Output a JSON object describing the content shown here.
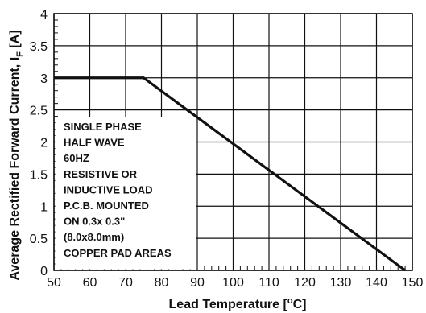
{
  "chart_data": {
    "type": "line",
    "xlabel": "Lead Temperature [",
    "xlabel_unit": "o",
    "xlabel_suffix": "C]",
    "ylabel": "Average Rectified Forward Current, I",
    "ylabel_sub": "F",
    "ylabel_suffix": " [A]",
    "xlim": [
      50,
      150
    ],
    "ylim": [
      0,
      4
    ],
    "x_ticks": [
      "50",
      "60",
      "70",
      "80",
      "90",
      "100",
      "110",
      "120",
      "130",
      "140",
      "150"
    ],
    "y_ticks": [
      "0",
      "0.5",
      "1",
      "1.5",
      "2",
      "2.5",
      "3",
      "3.5",
      "4"
    ],
    "grid": true,
    "series": [
      {
        "x": [
          50,
          75,
          148
        ],
        "y": [
          3,
          3,
          0
        ]
      }
    ],
    "annotation_lines": [
      "SINGLE PHASE",
      "HALF WAVE",
      "60HZ",
      "RESISTIVE OR",
      "INDUCTIVE LOAD",
      "P.C.B. MOUNTED",
      "ON 0.3x 0.3\"",
      "(8.0x8.0mm)",
      "COPPER PAD AREAS"
    ]
  }
}
